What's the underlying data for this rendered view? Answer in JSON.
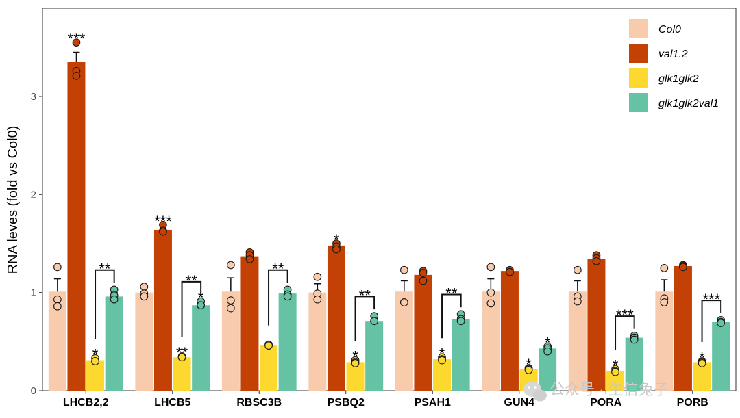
{
  "chart_data": {
    "type": "bar",
    "title": "",
    "xlabel": "",
    "ylabel": "RNA leves (fold vs Col0)",
    "ylim": [
      0,
      3.9
    ],
    "yticks": [
      0,
      1,
      2,
      3
    ],
    "grid": false,
    "legend_position": "top-right",
    "categories": [
      "LHCB2,2",
      "LHCB5",
      "RBSC3B",
      "PSBQ2",
      "PSAH1",
      "GUN4",
      "PORA",
      "PORB"
    ],
    "series": [
      {
        "name": "Col0",
        "color": "#f8cbad",
        "values": [
          1.01,
          1.0,
          1.01,
          1.0,
          1.01,
          1.01,
          1.01,
          1.01
        ],
        "errors": [
          0.13,
          0.04,
          0.14,
          0.09,
          0.11,
          0.13,
          0.11,
          0.12
        ],
        "points": [
          [
            1.26,
            0.93,
            0.86
          ],
          [
            1.06,
            0.99,
            0.96
          ],
          [
            1.28,
            0.92,
            0.84
          ],
          [
            1.16,
            0.99,
            0.93
          ],
          [
            1.23,
            0.9,
            0.9
          ],
          [
            1.26,
            1.0,
            0.89
          ],
          [
            1.23,
            0.96,
            0.91
          ],
          [
            1.25,
            0.94,
            0.9
          ]
        ],
        "stars": [
          "",
          "",
          "",
          "",
          "",
          "",
          "",
          ""
        ]
      },
      {
        "name": "val1.2",
        "color": "#c44105",
        "values": [
          3.35,
          1.64,
          1.37,
          1.48,
          1.18,
          1.22,
          1.34,
          1.27
        ],
        "errors": [
          0.1,
          0.03,
          0.03,
          0.02,
          0.04,
          0.01,
          0.03,
          0.01
        ],
        "points": [
          [
            3.55,
            3.26,
            3.21
          ],
          [
            1.69,
            1.63,
            1.62
          ],
          [
            1.41,
            1.38,
            1.34
          ],
          [
            1.5,
            1.47,
            1.44
          ],
          [
            1.22,
            1.2,
            1.12
          ],
          [
            1.23,
            1.21,
            1.21
          ],
          [
            1.38,
            1.35,
            1.32
          ],
          [
            1.28,
            1.27,
            1.26
          ]
        ],
        "stars": [
          "***",
          "***",
          "",
          "*",
          "",
          "",
          "",
          ""
        ]
      },
      {
        "name": "glk1glk2",
        "color": "#fdd82f",
        "values": [
          0.31,
          0.34,
          0.46,
          0.29,
          0.32,
          0.22,
          0.2,
          0.29
        ],
        "errors": [
          0.01,
          0.01,
          0.0,
          0.01,
          0.01,
          0.01,
          0.01,
          0.01
        ],
        "points": [
          [
            0.33,
            0.3,
            0.3
          ],
          [
            0.35,
            0.34,
            0.34
          ],
          [
            0.47,
            0.46,
            0.46
          ],
          [
            0.31,
            0.29,
            0.28
          ],
          [
            0.34,
            0.32,
            0.31
          ],
          [
            0.23,
            0.22,
            0.21
          ],
          [
            0.22,
            0.2,
            0.19
          ],
          [
            0.3,
            0.29,
            0.28
          ]
        ],
        "stars": [
          "*",
          "**",
          "",
          "*",
          "*",
          "*",
          "*",
          "*"
        ]
      },
      {
        "name": "glk1glk2val1",
        "color": "#66c2a5",
        "values": [
          0.96,
          0.87,
          0.99,
          0.71,
          0.73,
          0.43,
          0.54,
          0.7
        ],
        "errors": [
          0.04,
          0.02,
          0.02,
          0.03,
          0.03,
          0.02,
          0.01,
          0.01
        ],
        "points": [
          [
            1.03,
            0.97,
            0.93
          ],
          [
            0.91,
            0.87,
            0.87
          ],
          [
            1.03,
            0.98,
            0.96
          ],
          [
            0.76,
            0.71,
            0.71
          ],
          [
            0.78,
            0.73,
            0.71
          ],
          [
            0.45,
            0.43,
            0.4
          ],
          [
            0.56,
            0.54,
            0.52
          ],
          [
            0.72,
            0.7,
            0.69
          ]
        ],
        "stars": [
          "",
          "*",
          "",
          "",
          "",
          "*",
          "",
          ""
        ]
      }
    ],
    "comparisons": [
      {
        "category": "LHCB2,2",
        "between": [
          "glk1glk2",
          "glk1glk2val1"
        ],
        "label": "**"
      },
      {
        "category": "LHCB5",
        "between": [
          "glk1glk2",
          "glk1glk2val1"
        ],
        "label": "**"
      },
      {
        "category": "RBSC3B",
        "between": [
          "glk1glk2",
          "glk1glk2val1"
        ],
        "label": "**"
      },
      {
        "category": "PSBQ2",
        "between": [
          "glk1glk2",
          "glk1glk2val1"
        ],
        "label": "**"
      },
      {
        "category": "PSAH1",
        "between": [
          "glk1glk2",
          "glk1glk2val1"
        ],
        "label": "**"
      },
      {
        "category": "PORA",
        "between": [
          "glk1glk2",
          "glk1glk2val1"
        ],
        "label": "***"
      },
      {
        "category": "PORB",
        "between": [
          "glk1glk2",
          "glk1glk2val1"
        ],
        "label": "***"
      }
    ]
  },
  "watermark": {
    "text": "公众号 · 生信兔子",
    "icon": "wechat-icon"
  }
}
